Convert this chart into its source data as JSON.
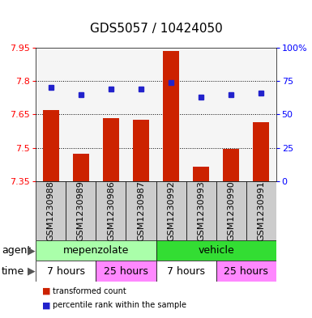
{
  "title": "GDS5057 / 10424050",
  "samples": [
    "GSM1230988",
    "GSM1230989",
    "GSM1230986",
    "GSM1230987",
    "GSM1230992",
    "GSM1230993",
    "GSM1230990",
    "GSM1230991"
  ],
  "bar_values": [
    7.67,
    7.475,
    7.635,
    7.625,
    7.935,
    7.415,
    7.495,
    7.615
  ],
  "percentile_values": [
    70,
    65,
    69,
    69,
    74,
    63,
    65,
    66
  ],
  "y_min": 7.35,
  "y_max": 7.95,
  "y_ticks": [
    7.35,
    7.5,
    7.65,
    7.8,
    7.95
  ],
  "y2_ticks": [
    0,
    25,
    50,
    75,
    100
  ],
  "bar_color": "#cc2200",
  "dot_color": "#2222cc",
  "agent_row": [
    {
      "label": "mepenzolate",
      "start": 0,
      "end": 4,
      "color": "#aaffaa"
    },
    {
      "label": "vehicle",
      "start": 4,
      "end": 8,
      "color": "#33dd33"
    }
  ],
  "time_row": [
    {
      "label": "7 hours",
      "start": 0,
      "end": 2,
      "color": "#ffffff"
    },
    {
      "label": "25 hours",
      "start": 2,
      "end": 4,
      "color": "#ff88ff"
    },
    {
      "label": "7 hours",
      "start": 4,
      "end": 6,
      "color": "#ffffff"
    },
    {
      "label": "25 hours",
      "start": 6,
      "end": 8,
      "color": "#ff88ff"
    }
  ],
  "legend_items": [
    {
      "color": "#cc2200",
      "label": "transformed count"
    },
    {
      "color": "#2222cc",
      "label": "percentile rank within the sample"
    }
  ],
  "agent_label": "agent",
  "time_label": "time",
  "title_fontsize": 11,
  "tick_fontsize": 8,
  "label_fontsize": 9,
  "sample_label_fontsize": 8,
  "gray_cell_color": "#cccccc",
  "white_bg": "#ffffff"
}
